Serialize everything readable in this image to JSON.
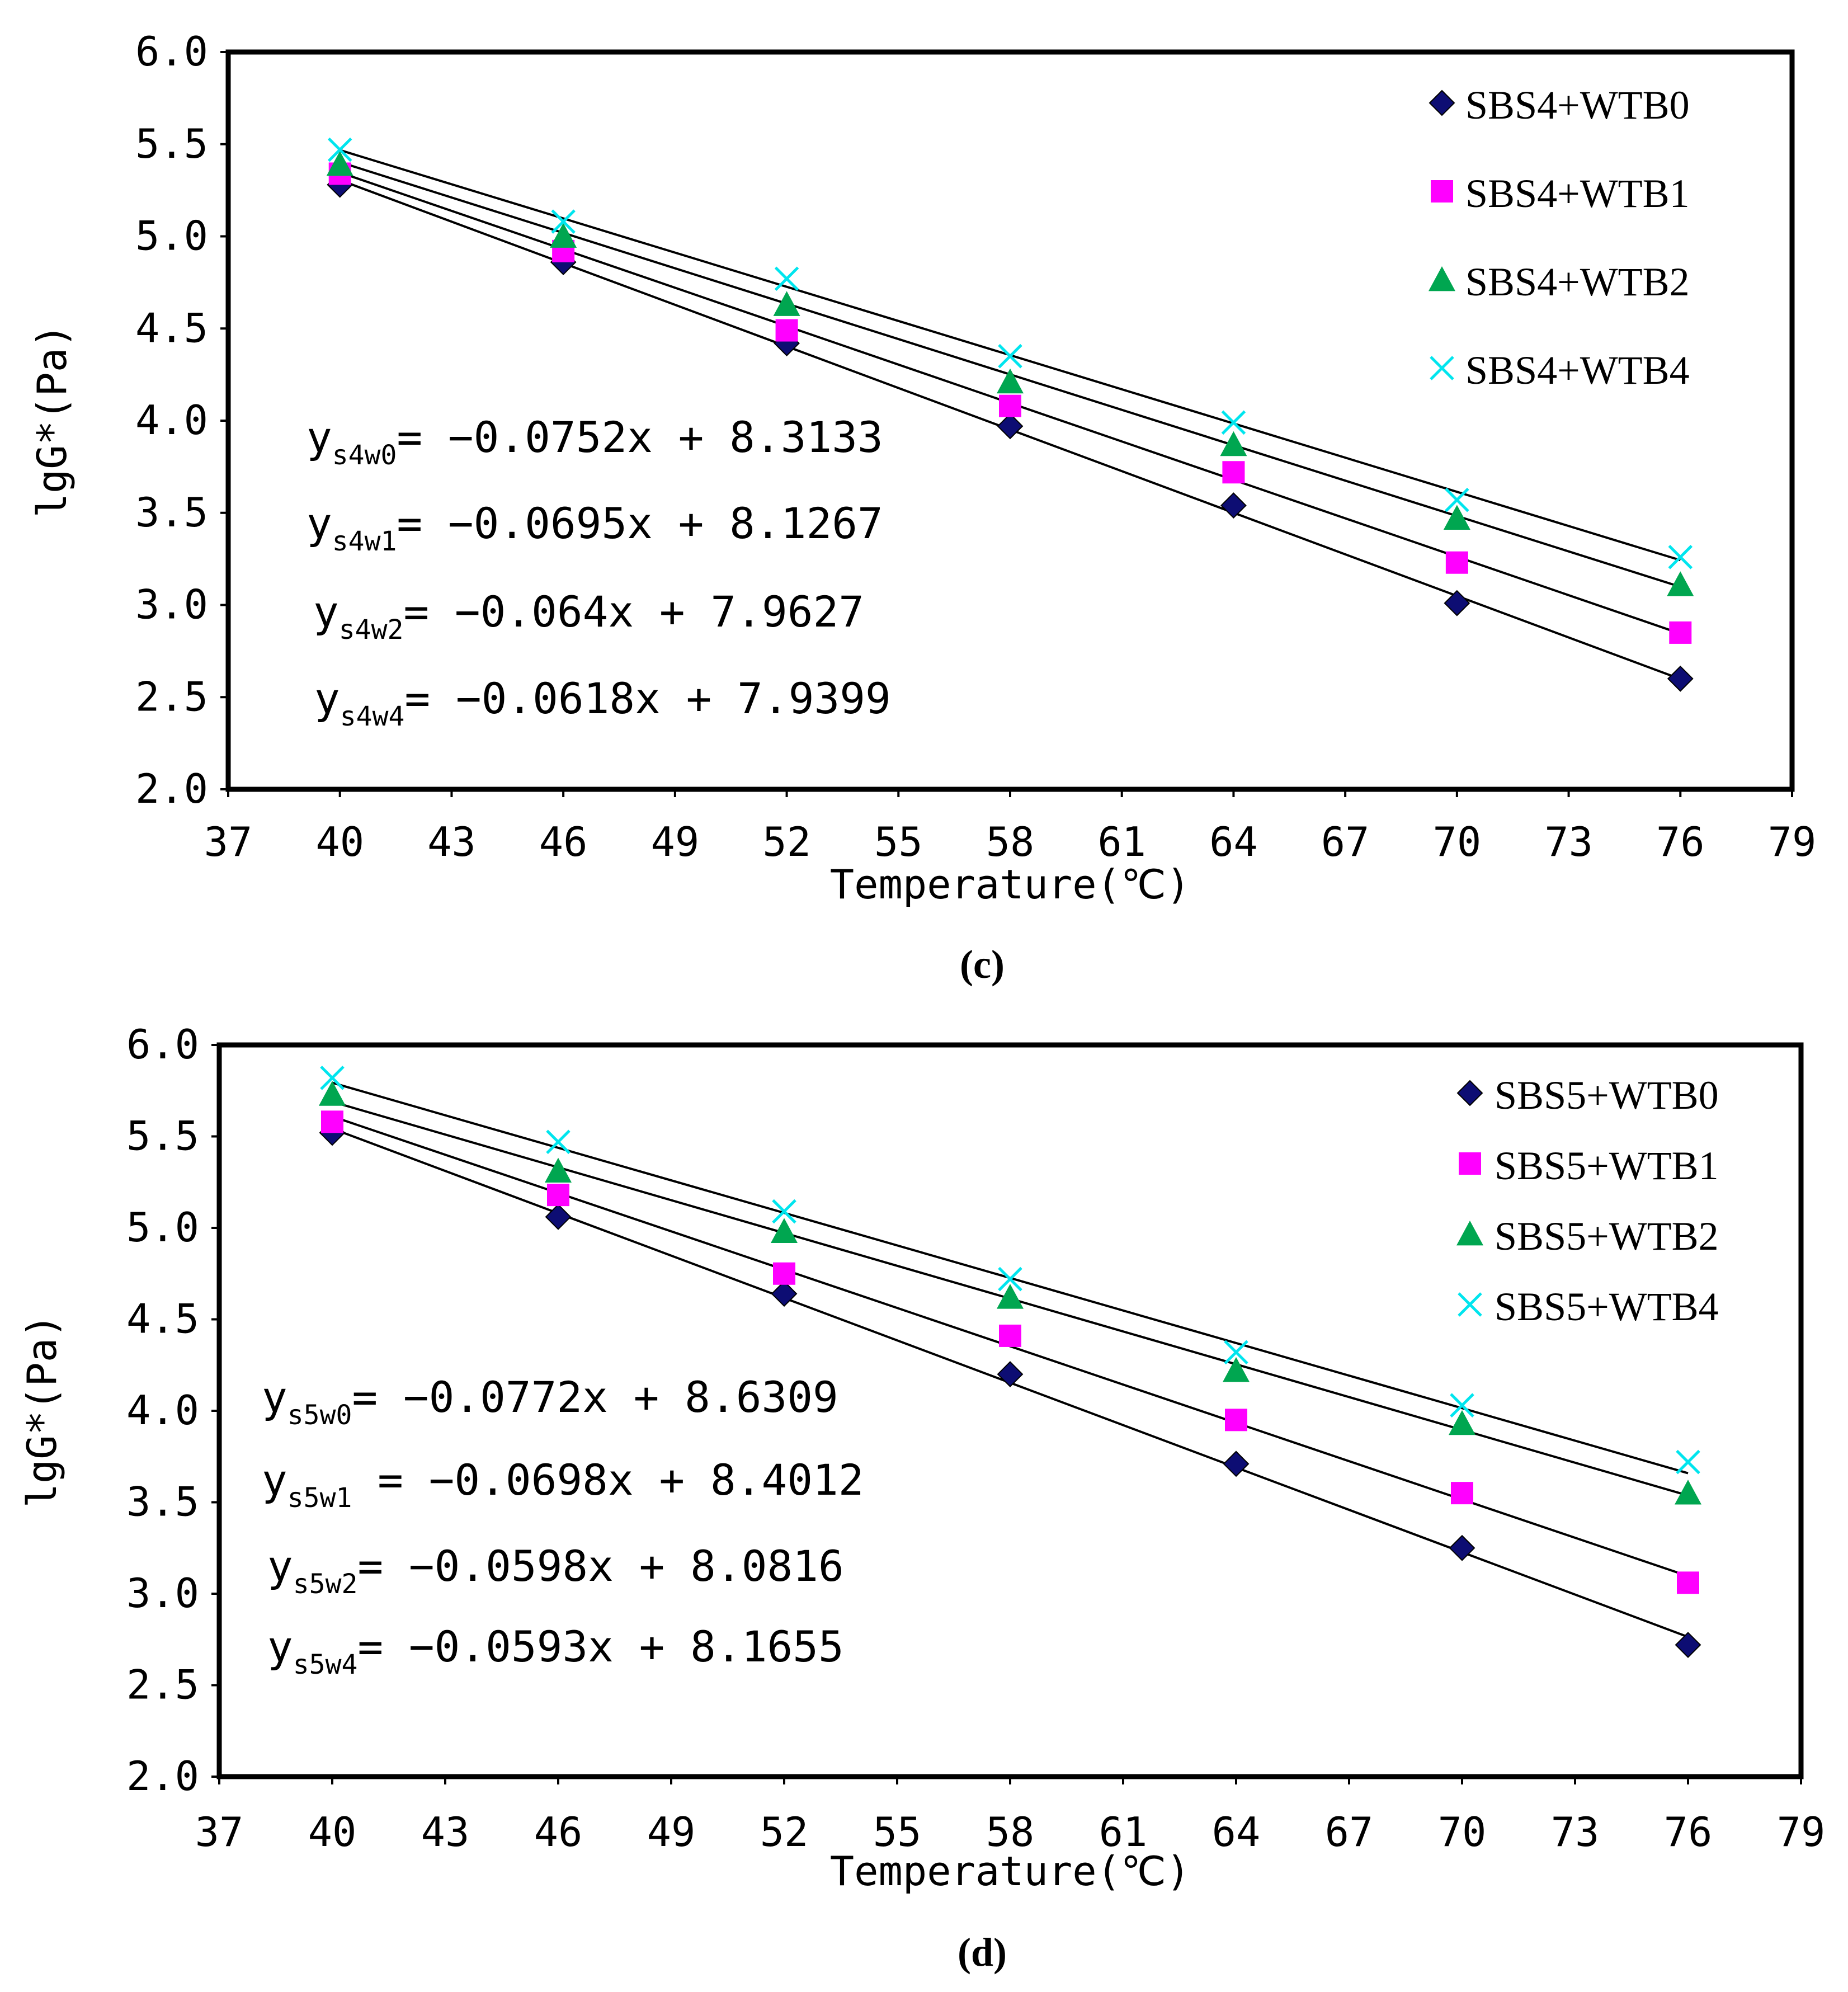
{
  "chart_data": [
    {
      "type": "scatter",
      "panel_label": "(c)",
      "xlabel": "Temperature(℃)",
      "ylabel": "lgG*(Pa)",
      "xlim": [
        37,
        79
      ],
      "ylim": [
        2.0,
        6.0
      ],
      "x_ticks": [
        "37",
        "40",
        "43",
        "46",
        "49",
        "52",
        "55",
        "58",
        "61",
        "64",
        "67",
        "70",
        "73",
        "76",
        "79"
      ],
      "y_ticks": [
        "2.0",
        "2.5",
        "3.0",
        "3.5",
        "4.0",
        "4.5",
        "5.0",
        "5.5",
        "6.0"
      ],
      "legend_position": "top-right",
      "x": [
        40,
        46,
        52,
        58,
        64,
        70,
        76
      ],
      "series": [
        {
          "name": "SBS4+WTB0",
          "marker": "diamond",
          "color": "#0d0d73",
          "values": [
            5.28,
            4.86,
            4.42,
            3.97,
            3.54,
            3.01,
            2.6
          ],
          "fit": {
            "slope": -0.0752,
            "intercept": 8.3133
          }
        },
        {
          "name": "SBS4+WTB1",
          "marker": "square",
          "color": "#ff00ff",
          "values": [
            5.34,
            4.92,
            4.49,
            4.08,
            3.72,
            3.23,
            2.85
          ],
          "fit": {
            "slope": -0.0695,
            "intercept": 8.1267
          }
        },
        {
          "name": "SBS4+WTB2",
          "marker": "triangle",
          "color": "#00a650",
          "values": [
            5.39,
            5.0,
            4.63,
            4.21,
            3.87,
            3.47,
            3.11
          ],
          "fit": {
            "slope": -0.064,
            "intercept": 7.9627
          }
        },
        {
          "name": "SBS4+WTB4",
          "marker": "x",
          "color": "#00e5ee",
          "values": [
            5.47,
            5.08,
            4.77,
            4.35,
            3.99,
            3.57,
            3.26
          ],
          "fit": {
            "slope": -0.0618,
            "intercept": 7.9399
          }
        }
      ],
      "equations": [
        {
          "y": "y",
          "sub": "s4w0",
          "rhs": "= −0.0752x + 8.3133"
        },
        {
          "y": "y",
          "sub": "s4w1",
          "rhs": "= −0.0695x + 8.1267"
        },
        {
          "y": "y",
          "sub": "s4w2",
          "rhs": "= −0.064x + 7.9627"
        },
        {
          "y": "y",
          "sub": "s4w4",
          "rhs": "= −0.0618x + 7.9399"
        }
      ]
    },
    {
      "type": "scatter",
      "panel_label": "(d)",
      "xlabel": "Temperature(℃)",
      "ylabel": "lgG*(Pa)",
      "xlim": [
        37,
        79
      ],
      "ylim": [
        2.0,
        6.0
      ],
      "x_ticks": [
        "37",
        "40",
        "43",
        "46",
        "49",
        "52",
        "55",
        "58",
        "61",
        "64",
        "67",
        "70",
        "73",
        "76",
        "79"
      ],
      "y_ticks": [
        "2.0",
        "2.5",
        "3.0",
        "3.5",
        "4.0",
        "4.5",
        "5.0",
        "5.5",
        "6.0"
      ],
      "legend_position": "top-right",
      "x": [
        40,
        46,
        52,
        58,
        64,
        70,
        76
      ],
      "series": [
        {
          "name": "SBS5+WTB0",
          "marker": "diamond",
          "color": "#0d0d73",
          "values": [
            5.52,
            5.06,
            4.64,
            4.2,
            3.71,
            3.25,
            2.72
          ],
          "fit": {
            "slope": -0.0772,
            "intercept": 8.6309
          }
        },
        {
          "name": "SBS5+WTB1",
          "marker": "square",
          "color": "#ff00ff",
          "values": [
            5.58,
            5.18,
            4.75,
            4.41,
            3.95,
            3.55,
            3.06
          ],
          "fit": {
            "slope": -0.0698,
            "intercept": 8.4012
          }
        },
        {
          "name": "SBS5+WTB2",
          "marker": "triangle",
          "color": "#00a650",
          "values": [
            5.73,
            5.31,
            4.98,
            4.62,
            4.22,
            3.93,
            3.55
          ],
          "fit": {
            "slope": -0.0598,
            "intercept": 8.0816
          }
        },
        {
          "name": "SBS5+WTB4",
          "marker": "x",
          "color": "#00e5ee",
          "values": [
            5.82,
            5.47,
            5.09,
            4.72,
            4.32,
            4.03,
            3.72
          ],
          "fit": {
            "slope": -0.0593,
            "intercept": 8.1655
          }
        }
      ],
      "equations": [
        {
          "y": "y",
          "sub": "s5w0",
          "rhs": "= −0.0772x + 8.6309"
        },
        {
          "y": "y",
          "sub": "s5w1",
          "rhs": " = −0.0698x + 8.4012"
        },
        {
          "y": "y",
          "sub": "s5w2",
          "rhs": "= −0.0598x + 8.0816"
        },
        {
          "y": "y",
          "sub": "s5w4",
          "rhs": "= −0.0593x + 8.1655"
        }
      ]
    }
  ]
}
